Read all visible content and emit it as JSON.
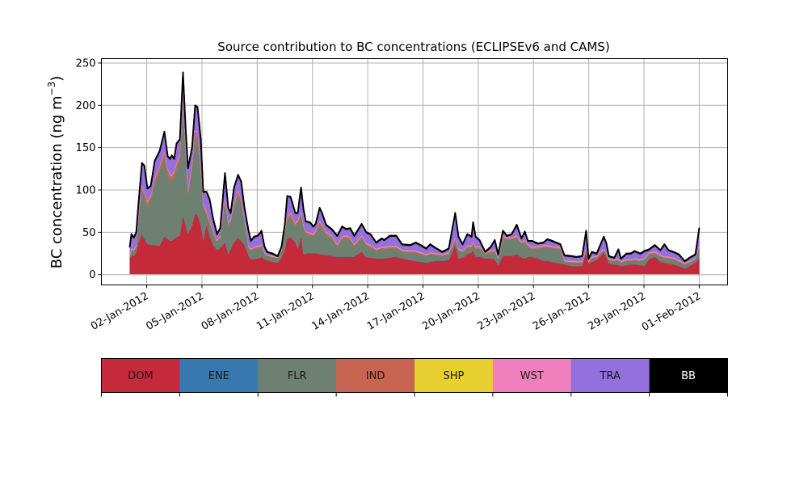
{
  "chart_data": {
    "type": "area",
    "stacked": true,
    "title": "Source contribution to BC concentrations (ECLIPSEv6 and CAMS)",
    "xlabel": "",
    "ylabel": "BC concentration (ng m",
    "ylabel_superscript": "−3",
    "ylabel_suffix": ")",
    "x_unit": "day of January 2012 (1 = 01-Jan-2012 00:00)",
    "xlim": [
      -0.46,
      33.54
    ],
    "ylim": [
      -12.2,
      255.2
    ],
    "grid": true,
    "yticks": [
      0,
      50,
      100,
      150,
      200,
      250
    ],
    "xticks": [
      {
        "day": 2,
        "label": "02-Jan-2012"
      },
      {
        "day": 5,
        "label": "05-Jan-2012"
      },
      {
        "day": 8,
        "label": "08-Jan-2012"
      },
      {
        "day": 11,
        "label": "11-Jan-2012"
      },
      {
        "day": 14,
        "label": "14-Jan-2012"
      },
      {
        "day": 17,
        "label": "17-Jan-2012"
      },
      {
        "day": 20,
        "label": "20-Jan-2012"
      },
      {
        "day": 23,
        "label": "23-Jan-2012"
      },
      {
        "day": 26,
        "label": "26-Jan-2012"
      },
      {
        "day": 29,
        "label": "29-Jan-2012"
      },
      {
        "day": 32,
        "label": "01-Feb-2012"
      }
    ],
    "x": [
      1.08,
      1.17,
      1.3,
      1.43,
      1.56,
      1.74,
      1.87,
      2.04,
      2.22,
      2.44,
      2.7,
      2.96,
      3.14,
      3.27,
      3.36,
      3.49,
      3.62,
      3.8,
      3.97,
      4.11,
      4.24,
      4.46,
      4.63,
      4.76,
      4.94,
      5.07,
      5.25,
      5.42,
      5.6,
      5.82,
      5.99,
      6.25,
      6.43,
      6.56,
      6.74,
      6.96,
      7.13,
      7.31,
      7.53,
      7.66,
      7.83,
      8.01,
      8.18,
      8.23,
      8.4,
      8.54,
      8.84,
      9.11,
      9.32,
      9.5,
      9.63,
      9.81,
      10.07,
      10.2,
      10.38,
      10.51,
      10.64,
      10.86,
      11.04,
      11.17,
      11.39,
      11.52,
      11.74,
      12.04,
      12.35,
      12.61,
      12.83,
      13.05,
      13.27,
      13.67,
      13.93,
      14.15,
      14.46,
      14.76,
      14.89,
      15.2,
      15.55,
      15.86,
      16.3,
      16.61,
      16.87,
      17.18,
      17.39,
      17.66,
      18.05,
      18.4,
      18.75,
      18.93,
      19.15,
      19.41,
      19.64,
      19.72,
      19.86,
      20.07,
      20.38,
      20.68,
      20.9,
      21.08,
      21.34,
      21.56,
      21.82,
      22.09,
      22.35,
      22.53,
      22.7,
      22.92,
      23.23,
      23.54,
      23.75,
      24.02,
      24.46,
      24.68,
      25.07,
      25.33,
      25.64,
      25.86,
      25.99,
      26.17,
      26.43,
      26.82,
      26.96,
      27.09,
      27.39,
      27.61,
      27.75,
      28.05,
      28.27,
      28.49,
      28.8,
      29.02,
      29.28,
      29.59,
      29.89,
      30.11,
      30.33,
      30.6,
      30.9,
      31.21,
      31.47,
      31.79,
      32.0
    ],
    "series": [
      {
        "name": "DOM",
        "color": "#c52a3a",
        "values": [
          19,
          22,
          22,
          26,
          38,
          48,
          42,
          36,
          35,
          35,
          34,
          45,
          42,
          40,
          40,
          42,
          44,
          46,
          70,
          58,
          48,
          58,
          72,
          70,
          58,
          40,
          59,
          45,
          35,
          29,
          31,
          38,
          24,
          30,
          38,
          43,
          40,
          35,
          22,
          18,
          18,
          19,
          20,
          21,
          18,
          17,
          15,
          14,
          20,
          30,
          43,
          44,
          38,
          30,
          45,
          24,
          25,
          25,
          25,
          25,
          24,
          24,
          23,
          22,
          21,
          21,
          21,
          21,
          21,
          27,
          20,
          20,
          19,
          19,
          19,
          20,
          21,
          19,
          17,
          16,
          15,
          14,
          15,
          16,
          16,
          17,
          35,
          19,
          20,
          24,
          26,
          29,
          21,
          21,
          19,
          19,
          18,
          11,
          22,
          22,
          22,
          24,
          20,
          19,
          21,
          21,
          19,
          16,
          16,
          15,
          13,
          12,
          10,
          10,
          10,
          27,
          13,
          15,
          17,
          26,
          20,
          13,
          12,
          11,
          10,
          11,
          12,
          12,
          11,
          10,
          18,
          21,
          15,
          14,
          13,
          12,
          10,
          7,
          10,
          14,
          19
        ]
      },
      {
        "name": "ENE",
        "color": "#3878b0",
        "values": 0.4
      },
      {
        "name": "FLR",
        "color": "#6e8070",
        "values": [
          1.6,
          5.6,
          4.6,
          5.6,
          26.6,
          51.6,
          49.6,
          44.6,
          52.6,
          72.6,
          87.6,
          92.6,
          75.6,
          71.6,
          70.6,
          72.6,
          80.6,
          87.6,
          129.6,
          81.6,
          44.6,
          66.6,
          89.6,
          89.6,
          61.6,
          38.6,
          10.6,
          14.6,
          12.6,
          8.6,
          11.6,
          47.6,
          32.6,
          31.6,
          40.6,
          50.6,
          44.6,
          26.6,
          8.6,
          9.6,
          11.6,
          11.6,
          11.6,
          11.6,
          5.6,
          4.6,
          4.6,
          4.6,
          7.6,
          20.6,
          21.6,
          23.6,
          18.6,
          29.6,
          24.6,
          30.6,
          22.6,
          20.6,
          19.6,
          22.6,
          34.6,
          30.6,
          23.6,
          20.6,
          11.6,
          20.6,
          21.6,
          19.6,
          11.6,
          15.6,
          13.6,
          11.6,
          8.6,
          10.6,
          10.6,
          10.6,
          9.6,
          7.6,
          8.6,
          9.6,
          8.6,
          7.6,
          8.6,
          6.6,
          5.6,
          6.6,
          4.6,
          8.6,
          5.6,
          6.6,
          5.6,
          6.6,
          8.6,
          9.6,
          4.6,
          6.6,
          8.6,
          6.6,
          20.6,
          18.6,
          18.6,
          18.6,
          15.6,
          18.6,
          11.6,
          8.6,
          11.6,
          15.6,
          15.6,
          15.6,
          16.6,
          2.6,
          3.6,
          3.6,
          3.6,
          0.6,
          0.6,
          3.6,
          2.6,
          1.6,
          2.6,
          3.6,
          3.6,
          5.6,
          3.6,
          4.6,
          3.6,
          4.6,
          4.6,
          6.6,
          5.6,
          3.6,
          5.6,
          4.6,
          5.6,
          5.6,
          4.6,
          4.6,
          3.6,
          3.6,
          11.6
        ]
      },
      {
        "name": "IND",
        "color": "#c86552",
        "values": [
          1.3,
          1.9,
          1.8,
          2.0,
          3.4,
          5.3,
          5.2,
          4.1,
          4.2,
          5.4,
          5.8,
          6.8,
          5.6,
          5.5,
          5.6,
          5.5,
          6.2,
          6.4,
          9.6,
          7.0,
          5.0,
          6.0,
          8.0,
          7.9,
          6.4,
          3.9,
          3.9,
          3.6,
          2.7,
          1.9,
          2.2,
          4.8,
          3.2,
          2.9,
          4.1,
          4.7,
          4.4,
          3.2,
          2.1,
          1.6,
          1.8,
          1.8,
          2.0,
          2.1,
          1.3,
          1.1,
          1.0,
          1.0,
          1.3,
          2.4,
          3.7,
          3.7,
          2.9,
          2.9,
          4.1,
          3.1,
          2.5,
          2.5,
          2.3,
          2.4,
          3.2,
          2.9,
          2.4,
          2.2,
          1.8,
          2.3,
          2.2,
          2.2,
          1.8,
          2.4,
          2.0,
          1.9,
          1.5,
          1.7,
          1.6,
          1.8,
          1.8,
          1.4,
          1.4,
          1.5,
          1.4,
          1.2,
          1.4,
          1.3,
          1.1,
          1.2,
          2.9,
          1.8,
          1.4,
          1.9,
          1.8,
          2.5,
          1.8,
          1.6,
          1.1,
          1.3,
          1.6,
          1.0,
          2.1,
          1.8,
          1.9,
          2.4,
          1.7,
          2.0,
          1.6,
          1.6,
          1.5,
          1.5,
          1.7,
          1.6,
          1.4,
          1.0,
          1.0,
          1.0,
          1.0,
          2.1,
          1.0,
          1.1,
          1.0,
          1.8,
          1.5,
          1.0,
          1.0,
          1.2,
          1.0,
          1.0,
          1.0,
          1.1,
          1.0,
          1.1,
          1.2,
          1.4,
          1.2,
          1.4,
          1.2,
          1.1,
          1.0,
          1.0,
          1.0,
          1.0,
          2.2
        ]
      },
      {
        "name": "SHP",
        "color": "#e6cf2e",
        "values": 0.2
      },
      {
        "name": "WST",
        "color": "#f07fbd",
        "values": 1.0
      },
      {
        "name": "TRA",
        "color": "#9370db",
        "values": [
          8.9,
          16.3,
          13.4,
          14.2,
          15.8,
          24.9,
          30.0,
          15.1,
          11.0,
          19.8,
          16.4,
          22.4,
          14.6,
          17.7,
          22.6,
          14.7,
          22.0,
          17.8,
          27.6,
          26.2,
          26.2,
          17.2,
          28.2,
          28.3,
          30.8,
          13.3,
          22.3,
          23.6,
          14.5,
          6.3,
          8.0,
          27.4,
          17.0,
          6.3,
          18.1,
          17.5,
          18.8,
          12.0,
          17.1,
          8.6,
          11.4,
          11.4,
          14.2,
          15.1,
          5.9,
          2.1,
          2.2,
          0.2,
          2.0,
          4.8,
          22.5,
          18.5,
          11.3,
          8.3,
          27.1,
          18.1,
          10.7,
          11.7,
          7.9,
          7.8,
          15.0,
          13.3,
          7.8,
          7.0,
          9.4,
          10.9,
          7.0,
          10.0,
          9.4,
          12.8,
          12.2,
          12.3,
          6.7,
          9.5,
          7.6,
          11.4,
          11.4,
          5.8,
          5.8,
          8.7,
          7.8,
          6.0,
          8.8,
          5.9,
          2.1,
          4.0,
          28.3,
          13.4,
          6.8,
          13.3,
          9.4,
          21.7,
          11.4,
          6.6,
          0.1,
          3.9,
          10.6,
          3.2,
          5.1,
          1.4,
          3.3,
          11.8,
          3.5,
          9.2,
          3.6,
          6.6,
          2.7,
          2.7,
          6.5,
          5.6,
          2.8,
          5.2,
          5.2,
          4.2,
          5.2,
          20.1,
          2.2,
          5.1,
          2.2,
          13.4,
          10.7,
          2.2,
          1.2,
          10.0,
          2.2,
          6.2,
          6.2,
          8.1,
          6.2,
          8.1,
          3.0,
          6.8,
          5.0,
          13.8,
          7.0,
          6.1,
          6.2,
          1.2,
          3.2,
          3.2,
          20.0
        ]
      },
      {
        "name": "BB",
        "color": "#000000",
        "values": 0.6
      }
    ],
    "colorbar": {
      "labels": [
        "DOM",
        "ENE",
        "FLR",
        "IND",
        "SHP",
        "WST",
        "TRA",
        "BB"
      ],
      "colors": [
        "#c52a3a",
        "#3878b0",
        "#6e8070",
        "#c86552",
        "#e6cf2e",
        "#f07fbd",
        "#9370db",
        "#000000"
      ],
      "text_colors": [
        "#1a1a1a",
        "#1a1a1a",
        "#1a1a1a",
        "#1a1a1a",
        "#1a1a1a",
        "#1a1a1a",
        "#1a1a1a",
        "#ffffff"
      ]
    }
  }
}
